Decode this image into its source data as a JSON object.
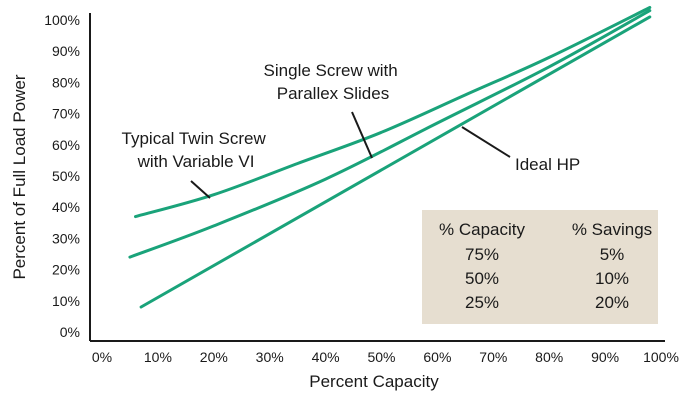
{
  "chart_data": {
    "type": "line",
    "xlabel": "Percent Capacity",
    "ylabel": "Percent of Full Load Power",
    "xlim": [
      0,
      100
    ],
    "ylim": [
      0,
      100
    ],
    "x_ticks": [
      "0%",
      "10%",
      "20%",
      "30%",
      "40%",
      "50%",
      "60%",
      "70%",
      "80%",
      "90%",
      "100%"
    ],
    "y_ticks": [
      "0%",
      "10%",
      "20%",
      "30%",
      "40%",
      "50%",
      "60%",
      "70%",
      "80%",
      "90%",
      "100%"
    ],
    "grid": false,
    "line_color": "#1aa37a",
    "series": [
      {
        "name": "Typical Twin Screw with Variable VI",
        "x": [
          6,
          20,
          35,
          50,
          65,
          80,
          98
        ],
        "y": [
          37,
          44,
          54,
          64,
          76,
          88,
          104
        ]
      },
      {
        "name": "Single Screw with Parallex Slides",
        "x": [
          5,
          20,
          40,
          60,
          80,
          98
        ],
        "y": [
          24,
          34,
          49,
          67,
          85,
          103
        ]
      },
      {
        "name": "Ideal HP",
        "x": [
          7,
          98
        ],
        "y": [
          8,
          101
        ]
      }
    ],
    "annotations": [
      {
        "lines": [
          "Typical Twin Screw",
          "with Variable VI"
        ],
        "point": [
          19,
          43.5
        ]
      },
      {
        "lines": [
          "Single Screw with",
          "Parallex Slides"
        ],
        "point": [
          48,
          57
        ]
      },
      {
        "lines": [
          "Ideal HP"
        ],
        "point": [
          62,
          65.5
        ]
      }
    ],
    "table": {
      "background": "#e6ded0",
      "headers": [
        "% Capacity",
        "% Savings"
      ],
      "rows": [
        [
          "75%",
          "5%"
        ],
        [
          "50%",
          "10%"
        ],
        [
          "25%",
          "20%"
        ]
      ]
    }
  }
}
